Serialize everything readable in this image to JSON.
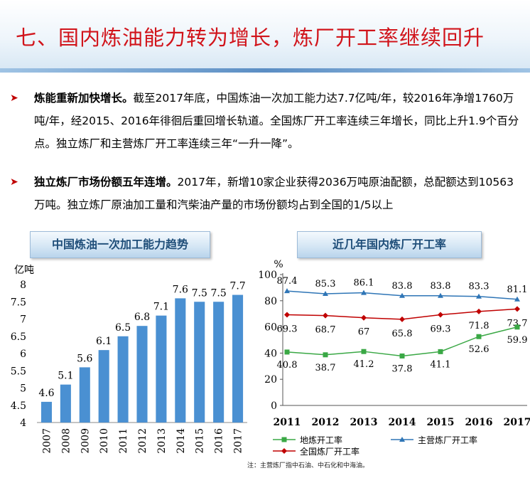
{
  "slide": {
    "title": "七、国内炼油能力转为增长，炼厂开工率继续回升",
    "bullets": [
      {
        "marker": "➤",
        "heading": "炼能重新加快增长。",
        "body": "截至2017年底，中国炼油一次加工能力达7.7亿吨/年，较2016年净增1760万吨/年，经2015、2016年徘徊后重回增长轨道。全国炼厂开工率连续三年增长，同比上升1.9个百分点。独立炼厂和主营炼厂开工率连续三年“一升一降”。"
      },
      {
        "marker": "➤",
        "heading": "独立炼厂市场份额五年连增。",
        "body": "2017年，新增10家企业获得2036万吨原油配额，总配额达到10563万吨。独立炼厂原油加工量和汽柴油产量的市场份额均占到全国的1/5以上"
      }
    ],
    "footnote": "注：主营炼厂指中石油、中石化和中海油。"
  },
  "chart_data": [
    {
      "type": "bar",
      "title": "中国炼油一次加工能力趋势",
      "ylabel": "亿吨",
      "ylim": [
        4,
        8
      ],
      "yticks": [
        4,
        4.5,
        5,
        5.5,
        6,
        6.5,
        7,
        7.5,
        8
      ],
      "categories": [
        "2007",
        "2008",
        "2009",
        "2010",
        "2011",
        "2012",
        "2013",
        "2014",
        "2015",
        "2016",
        "2017"
      ],
      "values": [
        4.6,
        5.1,
        5.6,
        6.1,
        6.5,
        6.8,
        7.1,
        7.6,
        7.5,
        7.5,
        7.7
      ],
      "bar_color": "#4a90d2",
      "grid": false
    },
    {
      "type": "line",
      "title": "近几年国内炼厂开工率",
      "ylabel": "%",
      "ylim": [
        0,
        100
      ],
      "yticks": [
        0,
        20,
        40,
        60,
        80,
        100
      ],
      "x": [
        "2011",
        "2012",
        "2013",
        "2014",
        "2015",
        "2016",
        "2017"
      ],
      "series": [
        {
          "name": "主营炼厂开工率",
          "values": [
            87.4,
            85.3,
            86.1,
            83.8,
            83.8,
            83.3,
            81.1
          ],
          "color": "#2e75b6",
          "marker": "triangle"
        },
        {
          "name": "全国炼厂开工率",
          "values": [
            69.3,
            68.7,
            67,
            65.8,
            69.3,
            71.8,
            73.7
          ],
          "color": "#c00000",
          "marker": "diamond"
        },
        {
          "name": "地炼开工率",
          "values": [
            40.8,
            38.7,
            41.2,
            37.8,
            41.1,
            52.6,
            59.9
          ],
          "color": "#3aa845",
          "marker": "square"
        }
      ],
      "data_labels": {
        "主营炼厂开工率": [
          "87.4",
          "85.3",
          "86.1",
          "83.8",
          "83.8",
          "83.3",
          "81.1"
        ],
        "全国炼厂开工率": [
          "69.3",
          "68.7",
          "67",
          "65.8",
          "69.3",
          "71.8",
          "73.7"
        ],
        "地炼开工率": [
          "40.8",
          "38.7",
          "41.2",
          "37.8",
          "41.1",
          "52.6",
          "59.9"
        ]
      },
      "legend": [
        {
          "name": "地炼开工率",
          "color": "#3aa845",
          "marker": "square"
        },
        {
          "name": "主营炼厂开工率",
          "color": "#2e75b6",
          "marker": "triangle"
        },
        {
          "name": "全国炼厂开工率",
          "color": "#c00000",
          "marker": "diamond"
        }
      ],
      "legend_position": "bottom",
      "grid": false
    }
  ]
}
